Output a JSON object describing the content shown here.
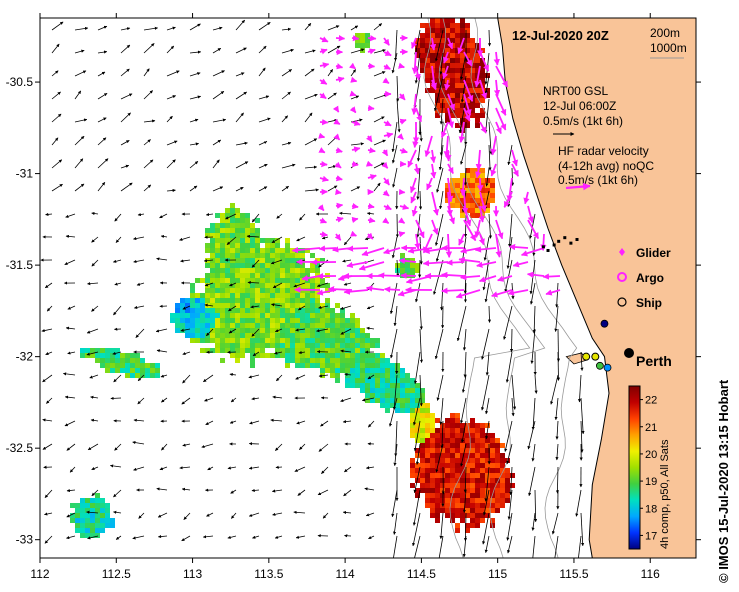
{
  "title": "12-Jul-2020 20Z",
  "bathymetry_legend": {
    "line1": "200m",
    "line2": "1000m"
  },
  "model_legend": {
    "line1": "NRT00 GSL",
    "line2": "12-Jul 06:00Z",
    "line3": "0.5m/s (1kt 6h)"
  },
  "radar_legend": {
    "line1": "HF radar velocity",
    "line2": "(4-12h avg) noQC",
    "line3": "0.5m/s (1kt 6h)"
  },
  "platform_legend": [
    {
      "label": "Glider",
      "symbol": "magenta-diamond-icon",
      "color": "#ff22ff"
    },
    {
      "label": "Argo",
      "symbol": "magenta-ring-icon",
      "color": "#ff22ff"
    },
    {
      "label": "Ship",
      "symbol": "black-circle-icon",
      "color": "#000000"
    }
  ],
  "place_label": "Perth",
  "colorbar": {
    "label": "4h comp, p50, All Sats",
    "ticks": [
      "22",
      "21",
      "20",
      "19",
      "18",
      "17"
    ],
    "range": [
      16.5,
      22.5
    ],
    "colors": [
      "#000080",
      "#0033ff",
      "#00a8ff",
      "#00e0c0",
      "#40d040",
      "#a0e000",
      "#f0f000",
      "#ffa000",
      "#ff4000",
      "#c00000",
      "#800000"
    ]
  },
  "credit": "© IMOS 15-Jul-2020 13:15 Hobart",
  "chart_data": {
    "type": "map",
    "xlabel": "",
    "ylabel": "",
    "xlim": [
      112,
      116.3
    ],
    "ylim": [
      -33.1,
      -30.15
    ],
    "x_ticks": [
      "112",
      "112.5",
      "113",
      "113.5",
      "114",
      "114.5",
      "115",
      "115.5",
      "116"
    ],
    "y_ticks": [
      "-30.5",
      "-31",
      "-31.5",
      "-32",
      "-32.5",
      "-33"
    ],
    "land_color": "#f9c498",
    "coastline": [
      [
        115.0,
        -30.15
      ],
      [
        115.03,
        -30.3
      ],
      [
        115.05,
        -30.5
      ],
      [
        115.1,
        -30.7
      ],
      [
        115.17,
        -30.9
      ],
      [
        115.25,
        -31.1
      ],
      [
        115.33,
        -31.3
      ],
      [
        115.42,
        -31.5
      ],
      [
        115.52,
        -31.7
      ],
      [
        115.62,
        -31.9
      ],
      [
        115.7,
        -32.0
      ],
      [
        115.73,
        -32.2
      ],
      [
        115.68,
        -32.45
      ],
      [
        115.62,
        -32.7
      ],
      [
        115.6,
        -33.0
      ],
      [
        115.62,
        -33.1
      ]
    ],
    "islands": [
      [
        [
          115.45,
          -32.0
        ],
        [
          115.55,
          -31.98
        ],
        [
          115.58,
          -32.02
        ],
        [
          115.5,
          -32.04
        ]
      ]
    ],
    "perth": [
      115.86,
      -31.95
    ],
    "argo_floats": [
      [
        115.64,
        -32.0
      ],
      [
        115.58,
        -32.0
      ]
    ],
    "ship_positions": [
      [
        115.7,
        -31.82
      ],
      [
        115.67,
        -32.05
      ],
      [
        115.72,
        -32.06
      ]
    ],
    "glider_track": [
      [
        115.3,
        -31.4
      ],
      [
        115.33,
        -31.42
      ],
      [
        115.37,
        -31.39
      ],
      [
        115.4,
        -31.37
      ],
      [
        115.44,
        -31.35
      ],
      [
        115.48,
        -31.38
      ],
      [
        115.52,
        -31.36
      ]
    ]
  }
}
